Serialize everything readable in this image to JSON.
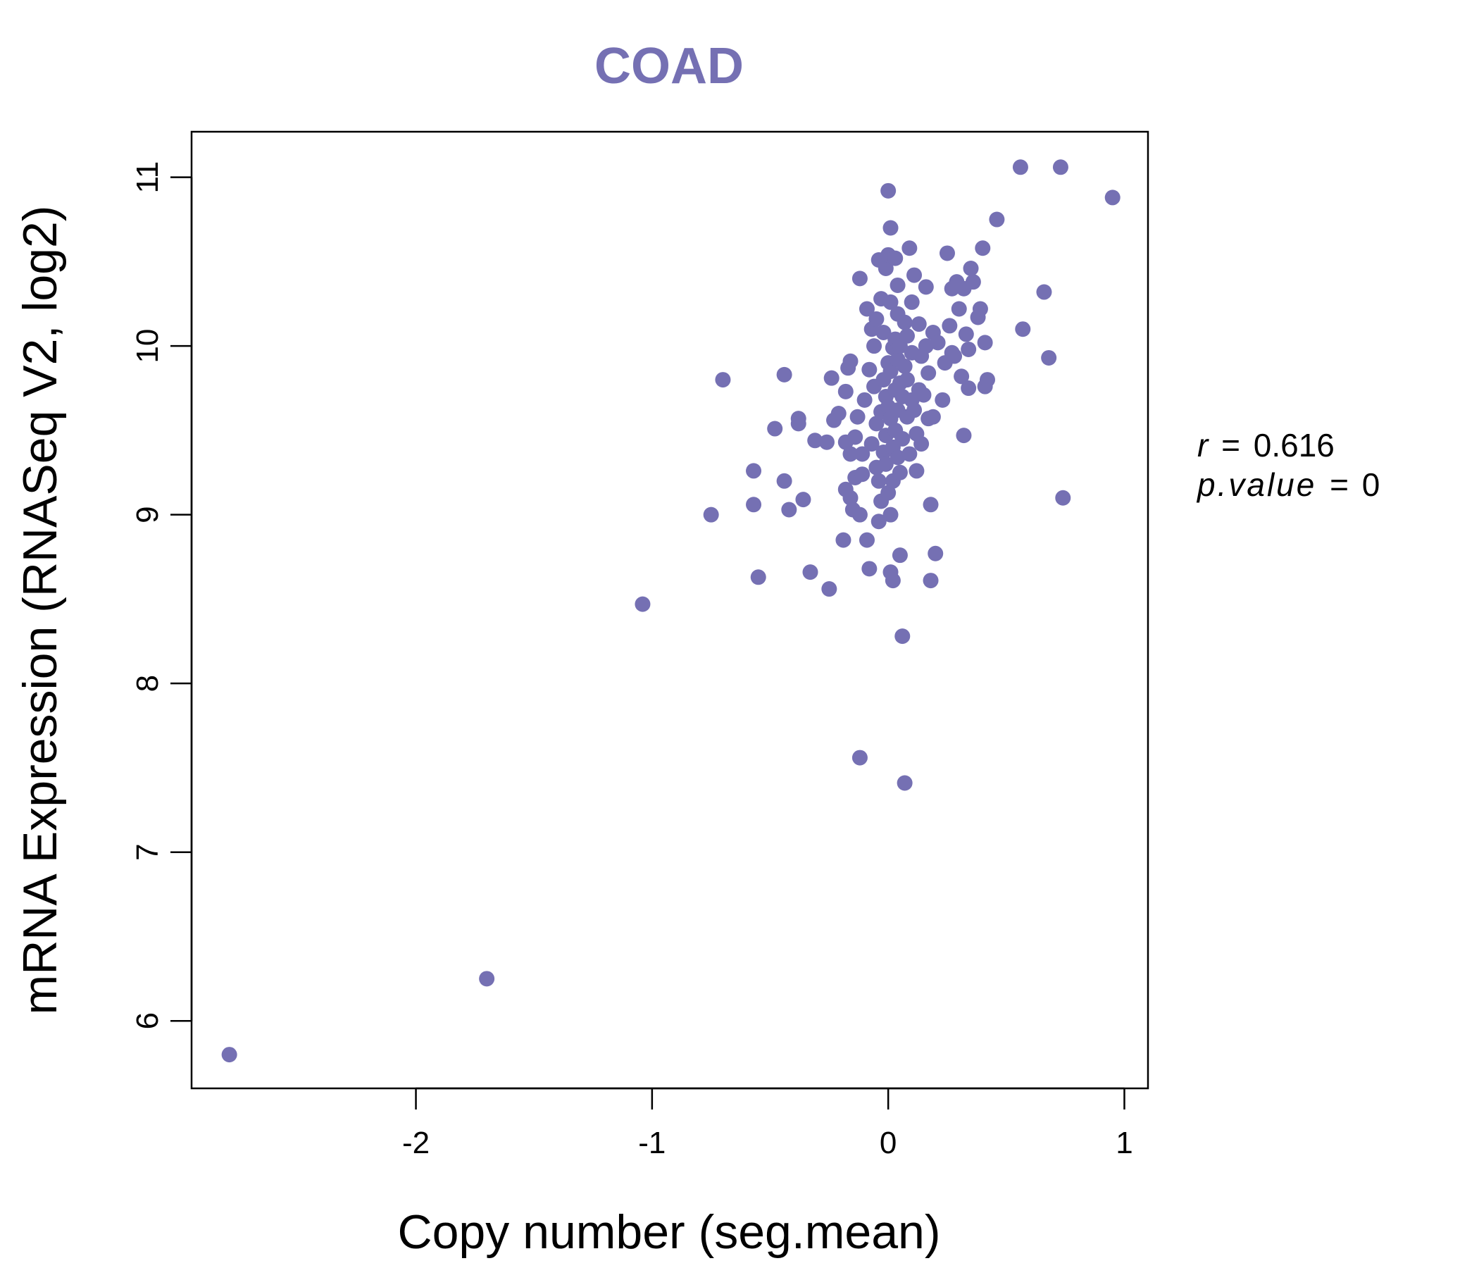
{
  "chart_data": {
    "type": "scatter",
    "title": "COAD",
    "xlabel": "Copy number (seg.mean)",
    "ylabel": "mRNA Expression (RNASeq V2, log2)",
    "xlim": [
      -2.95,
      1.1
    ],
    "ylim": [
      5.6,
      11.27
    ],
    "x_ticks": [
      -2,
      -1,
      0,
      1
    ],
    "x_tick_labels": [
      "-2",
      "-1",
      "0",
      "1"
    ],
    "y_ticks": [
      6,
      7,
      8,
      9,
      10,
      11
    ],
    "y_tick_labels": [
      "6",
      "7",
      "8",
      "9",
      "10",
      "11"
    ],
    "point_color": "#7570b3",
    "title_color": "#7570b3",
    "grid": false,
    "annotations": {
      "r_label": "r",
      "r_value": "0.616",
      "p_label": "p.value",
      "p_value": "0",
      "equals": "="
    },
    "points": [
      [
        -2.79,
        5.8
      ],
      [
        -1.7,
        6.25
      ],
      [
        -1.04,
        8.47
      ],
      [
        -0.7,
        9.8
      ],
      [
        -0.75,
        9.0
      ],
      [
        -0.57,
        9.26
      ],
      [
        -0.57,
        9.06
      ],
      [
        -0.55,
        8.63
      ],
      [
        -0.48,
        9.51
      ],
      [
        -0.44,
        9.83
      ],
      [
        -0.44,
        9.2
      ],
      [
        -0.42,
        9.03
      ],
      [
        -0.38,
        9.57
      ],
      [
        -0.38,
        9.54
      ],
      [
        -0.36,
        9.09
      ],
      [
        -0.33,
        8.66
      ],
      [
        -0.31,
        9.44
      ],
      [
        -0.26,
        9.43
      ],
      [
        -0.25,
        8.56
      ],
      [
        -0.24,
        9.81
      ],
      [
        -0.23,
        9.56
      ],
      [
        -0.21,
        9.6
      ],
      [
        -0.19,
        8.85
      ],
      [
        -0.18,
        9.73
      ],
      [
        -0.18,
        9.43
      ],
      [
        -0.18,
        9.15
      ],
      [
        -0.17,
        9.87
      ],
      [
        -0.16,
        9.91
      ],
      [
        -0.16,
        9.36
      ],
      [
        -0.16,
        9.1
      ],
      [
        -0.15,
        9.03
      ],
      [
        -0.14,
        9.22
      ],
      [
        -0.14,
        9.46
      ],
      [
        -0.13,
        9.58
      ],
      [
        -0.12,
        10.4
      ],
      [
        -0.12,
        9.0
      ],
      [
        -0.12,
        7.56
      ],
      [
        -0.11,
        9.36
      ],
      [
        -0.11,
        9.24
      ],
      [
        -0.1,
        9.68
      ],
      [
        -0.09,
        8.85
      ],
      [
        -0.09,
        10.22
      ],
      [
        -0.08,
        9.86
      ],
      [
        -0.08,
        8.68
      ],
      [
        -0.07,
        10.1
      ],
      [
        -0.07,
        9.42
      ],
      [
        -0.06,
        9.76
      ],
      [
        -0.06,
        10.0
      ],
      [
        -0.05,
        10.16
      ],
      [
        -0.05,
        9.28
      ],
      [
        -0.05,
        9.54
      ],
      [
        -0.04,
        10.51
      ],
      [
        -0.04,
        9.2
      ],
      [
        -0.04,
        8.96
      ],
      [
        -0.03,
        10.28
      ],
      [
        -0.03,
        9.61
      ],
      [
        -0.03,
        9.08
      ],
      [
        -0.02,
        9.37
      ],
      [
        -0.02,
        9.8
      ],
      [
        -0.02,
        10.08
      ],
      [
        -0.01,
        10.46
      ],
      [
        -0.01,
        9.7
      ],
      [
        -0.01,
        9.47
      ],
      [
        -0.01,
        9.3
      ],
      [
        0.0,
        10.92
      ],
      [
        0.0,
        10.54
      ],
      [
        0.0,
        9.9
      ],
      [
        0.0,
        9.64
      ],
      [
        0.0,
        9.13
      ],
      [
        0.01,
        10.7
      ],
      [
        0.01,
        10.26
      ],
      [
        0.01,
        9.85
      ],
      [
        0.01,
        9.57
      ],
      [
        0.01,
        9.0
      ],
      [
        0.01,
        8.66
      ],
      [
        0.02,
        8.61
      ],
      [
        0.02,
        9.99
      ],
      [
        0.02,
        9.4
      ],
      [
        0.02,
        9.2
      ],
      [
        0.03,
        10.52
      ],
      [
        0.03,
        10.04
      ],
      [
        0.03,
        9.74
      ],
      [
        0.03,
        9.5
      ],
      [
        0.04,
        10.36
      ],
      [
        0.04,
        10.19
      ],
      [
        0.04,
        9.92
      ],
      [
        0.04,
        9.62
      ],
      [
        0.04,
        9.34
      ],
      [
        0.05,
        9.78
      ],
      [
        0.05,
        9.25
      ],
      [
        0.05,
        10.0
      ],
      [
        0.05,
        8.76
      ],
      [
        0.06,
        9.7
      ],
      [
        0.06,
        9.45
      ],
      [
        0.06,
        8.28
      ],
      [
        0.07,
        7.41
      ],
      [
        0.07,
        10.14
      ],
      [
        0.07,
        9.88
      ],
      [
        0.08,
        9.58
      ],
      [
        0.08,
        10.06
      ],
      [
        0.08,
        9.8
      ],
      [
        0.09,
        9.36
      ],
      [
        0.09,
        10.58
      ],
      [
        0.1,
        9.68
      ],
      [
        0.1,
        9.96
      ],
      [
        0.1,
        10.26
      ],
      [
        0.11,
        10.42
      ],
      [
        0.11,
        9.62
      ],
      [
        0.12,
        9.48
      ],
      [
        0.12,
        9.26
      ],
      [
        0.13,
        10.13
      ],
      [
        0.13,
        9.74
      ],
      [
        0.14,
        9.42
      ],
      [
        0.14,
        9.94
      ],
      [
        0.15,
        9.71
      ],
      [
        0.16,
        10.0
      ],
      [
        0.16,
        10.35
      ],
      [
        0.17,
        9.84
      ],
      [
        0.17,
        9.57
      ],
      [
        0.18,
        9.06
      ],
      [
        0.18,
        8.61
      ],
      [
        0.19,
        10.08
      ],
      [
        0.19,
        9.58
      ],
      [
        0.2,
        8.77
      ],
      [
        0.21,
        10.02
      ],
      [
        0.23,
        9.68
      ],
      [
        0.24,
        9.9
      ],
      [
        0.25,
        10.55
      ],
      [
        0.26,
        10.12
      ],
      [
        0.27,
        10.34
      ],
      [
        0.27,
        9.96
      ],
      [
        0.28,
        9.94
      ],
      [
        0.29,
        10.38
      ],
      [
        0.3,
        10.22
      ],
      [
        0.31,
        9.82
      ],
      [
        0.32,
        9.47
      ],
      [
        0.32,
        10.34
      ],
      [
        0.33,
        10.07
      ],
      [
        0.34,
        9.75
      ],
      [
        0.34,
        9.98
      ],
      [
        0.35,
        10.46
      ],
      [
        0.36,
        10.38
      ],
      [
        0.38,
        10.17
      ],
      [
        0.39,
        10.22
      ],
      [
        0.4,
        10.58
      ],
      [
        0.41,
        10.02
      ],
      [
        0.41,
        9.76
      ],
      [
        0.42,
        9.8
      ],
      [
        0.46,
        10.75
      ],
      [
        0.56,
        11.06
      ],
      [
        0.57,
        10.1
      ],
      [
        0.66,
        10.32
      ],
      [
        0.68,
        9.93
      ],
      [
        0.73,
        11.06
      ],
      [
        0.74,
        9.1
      ],
      [
        0.95,
        10.88
      ]
    ]
  }
}
